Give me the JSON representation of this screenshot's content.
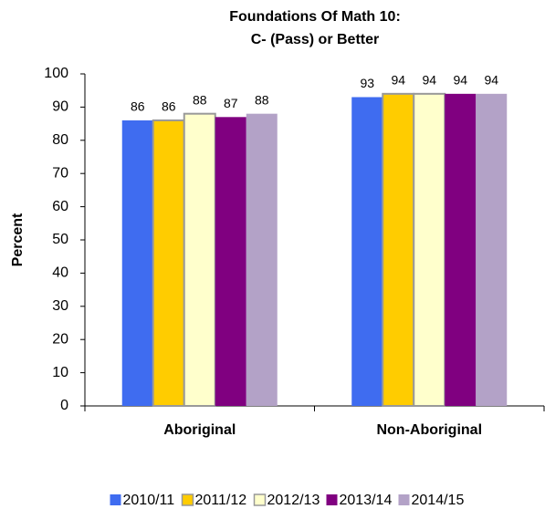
{
  "chart_data": {
    "type": "bar",
    "title": "Foundations Of Math 10:",
    "subtitle": "C- (Pass) or Better",
    "y_label": "Percent",
    "categories": [
      "Aboriginal",
      "Non-Aboriginal"
    ],
    "series": [
      {
        "name": "2010/11",
        "color": "#3f6cf0",
        "values": [
          86,
          93
        ]
      },
      {
        "name": "2011/12",
        "color": "#ffcc00",
        "values": [
          86,
          94
        ]
      },
      {
        "name": "2012/13",
        "color": "#ffffcc",
        "values": [
          88,
          94
        ]
      },
      {
        "name": "2013/14",
        "color": "#800080",
        "values": [
          87,
          94
        ]
      },
      {
        "name": "2014/15",
        "color": "#b3a2c7",
        "values": [
          88,
          94
        ]
      }
    ],
    "ylim": [
      0,
      100
    ],
    "yticks": [
      0,
      10,
      20,
      30,
      40,
      50,
      60,
      70,
      80,
      90,
      100
    ],
    "grid": false,
    "legend": "bottom"
  }
}
